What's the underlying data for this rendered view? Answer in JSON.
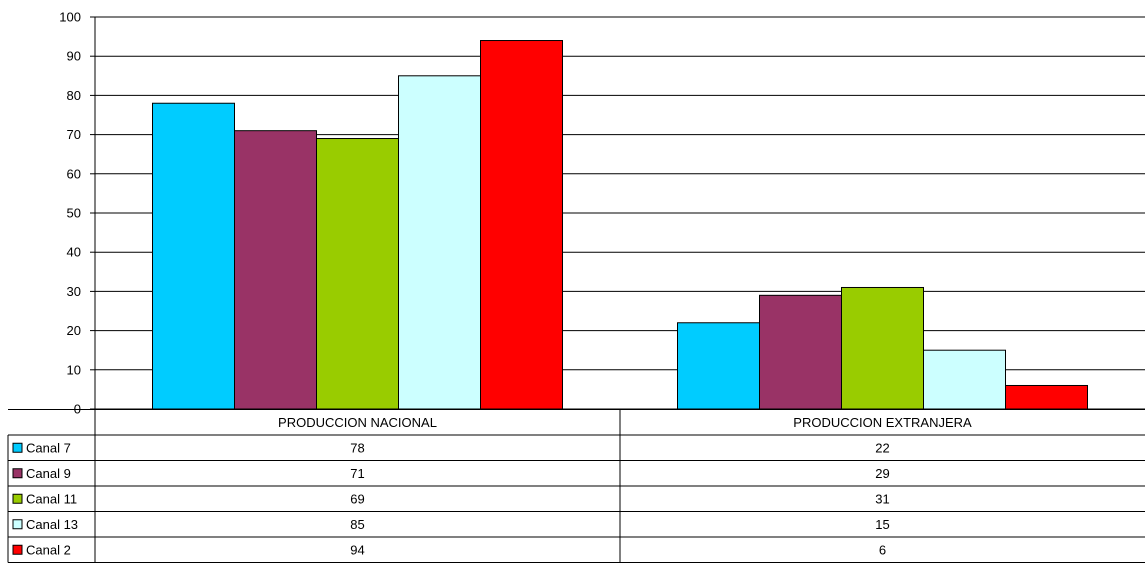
{
  "chart_data": {
    "type": "bar",
    "categories": [
      "PRODUCCION NACIONAL",
      "PRODUCCION EXTRANJERA"
    ],
    "series": [
      {
        "name": "Canal 7",
        "values": [
          78,
          22
        ],
        "color": "#00CCFF"
      },
      {
        "name": "Canal 9",
        "values": [
          71,
          29
        ],
        "color": "#993366"
      },
      {
        "name": "Canal 11",
        "values": [
          69,
          31
        ],
        "color": "#99CC00"
      },
      {
        "name": "Canal 13",
        "values": [
          85,
          15
        ],
        "color": "#CCFFFF"
      },
      {
        "name": "Canal 2",
        "values": [
          94,
          6
        ],
        "color": "#FF0000"
      }
    ],
    "ylim": [
      0,
      100
    ],
    "yticks": [
      0,
      10,
      20,
      30,
      40,
      50,
      60,
      70,
      80,
      90,
      100
    ],
    "grid": true,
    "legend": "data-table"
  }
}
